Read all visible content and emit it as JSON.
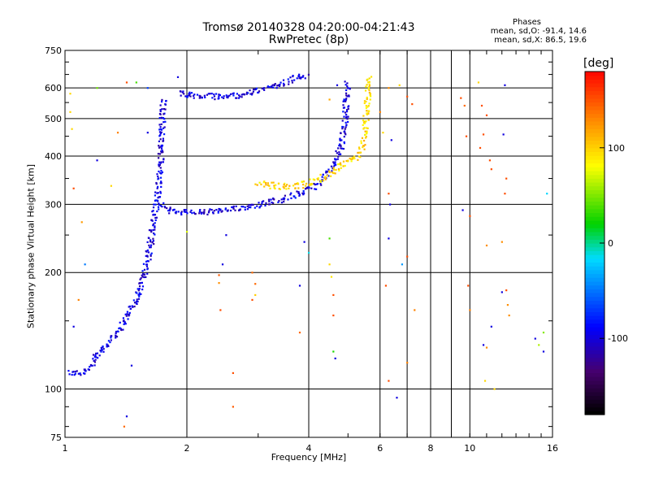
{
  "chart_data": {
    "type": "scatter",
    "title": "Tromsø 20140328 04:20:00-04:21:43",
    "subtitle": "RwPretec (8p)",
    "xlabel": "Frequency [MHz]",
    "ylabel": "Stationary phase Virtual Height [km]",
    "x_scale": "log",
    "y_scale": "log",
    "xlim": [
      1,
      16
    ],
    "ylim": [
      75,
      750
    ],
    "xticks": [
      1,
      2,
      4,
      6,
      8,
      10,
      16
    ],
    "xtick_labels": [
      "1",
      "2",
      "4",
      "6",
      "8",
      "10",
      "16"
    ],
    "x_gridlines": [
      2,
      4,
      6,
      7,
      8,
      9,
      10
    ],
    "yticks": [
      75,
      100,
      200,
      300,
      400,
      500,
      600,
      750
    ],
    "ytick_labels": [
      "75",
      "100",
      "200",
      "300",
      "400",
      "500",
      "600",
      "750"
    ],
    "y_gridlines": [
      100,
      200,
      300,
      400,
      500,
      600
    ],
    "colorbar": {
      "label": "[deg]",
      "range": [
        -180,
        180
      ],
      "ticks": [
        100,
        0,
        -100
      ],
      "tick_labels": [
        "100",
        "0",
        "-100"
      ]
    },
    "stats": {
      "heading": "Phases",
      "line_o": "mean, sd,O: -91.4, 14.6",
      "line_x": "mean, sd,X:  86.5, 19.6"
    },
    "series": [
      {
        "trace": "o-mode F-layer trace",
        "phase": -100,
        "segments": [
          [
            [
              1.02,
              110
            ],
            [
              1.1,
              110
            ],
            [
              1.15,
              114
            ],
            [
              1.2,
              122
            ],
            [
              1.3,
              134
            ],
            [
              1.4,
              150
            ],
            [
              1.5,
              170
            ],
            [
              1.55,
              190
            ],
            [
              1.6,
              215
            ],
            [
              1.63,
              240
            ],
            [
              1.65,
              270
            ],
            [
              1.68,
              300
            ],
            [
              1.7,
              330
            ],
            [
              1.72,
              370
            ],
            [
              1.73,
              420
            ],
            [
              1.74,
              480
            ],
            [
              1.75,
              560
            ]
          ],
          [
            [
              1.72,
              300
            ],
            [
              1.8,
              290
            ],
            [
              2.0,
              286
            ],
            [
              2.3,
              287
            ],
            [
              2.6,
              291
            ],
            [
              3.0,
              300
            ],
            [
              3.5,
              311
            ],
            [
              4.0,
              326
            ],
            [
              4.3,
              345
            ],
            [
              4.6,
              375
            ],
            [
              4.8,
              420
            ],
            [
              4.9,
              480
            ],
            [
              4.95,
              550
            ],
            [
              4.98,
              620
            ]
          ],
          [
            [
              1.9,
              585
            ],
            [
              2.1,
              572
            ],
            [
              2.4,
              570
            ],
            [
              2.7,
              575
            ],
            [
              3.0,
              590
            ],
            [
              3.4,
              615
            ],
            [
              3.8,
              640
            ],
            [
              3.95,
              650
            ]
          ]
        ]
      },
      {
        "trace": "x-mode F-layer trace",
        "phase": 95,
        "segments": [
          [
            [
              3.0,
              340
            ],
            [
              3.3,
              335
            ],
            [
              3.6,
              333
            ],
            [
              4.0,
              340
            ],
            [
              4.4,
              355
            ],
            [
              4.8,
              375
            ],
            [
              5.2,
              395
            ],
            [
              5.4,
              420
            ],
            [
              5.5,
              460
            ],
            [
              5.55,
              520
            ],
            [
              5.6,
              580
            ],
            [
              5.62,
              640
            ]
          ]
        ]
      },
      {
        "trace": "scattered noise points",
        "points": [
          [
            1.03,
            580,
            95
          ],
          [
            1.03,
            520,
            95
          ],
          [
            1.04,
            470,
            95
          ],
          [
            1.2,
            600,
            45
          ],
          [
            1.42,
            620,
            150
          ],
          [
            1.5,
            620,
            35
          ],
          [
            1.6,
            600,
            -70
          ],
          [
            1.4,
            80,
            140
          ],
          [
            1.42,
            85,
            -100
          ],
          [
            1.3,
            335,
            95
          ],
          [
            1.35,
            460,
            130
          ],
          [
            1.05,
            330,
            150
          ],
          [
            1.1,
            270,
            120
          ],
          [
            1.12,
            210,
            -50
          ],
          [
            1.08,
            170,
            130
          ],
          [
            1.05,
            145,
            -100
          ],
          [
            1.2,
            390,
            -100
          ],
          [
            1.46,
            115,
            -100
          ],
          [
            1.9,
            640,
            -100
          ],
          [
            1.6,
            460,
            -100
          ],
          [
            2.4,
            197,
            145
          ],
          [
            2.4,
            188,
            125
          ],
          [
            2.45,
            210,
            -100
          ],
          [
            2.42,
            160,
            150
          ],
          [
            2.5,
            250,
            -100
          ],
          [
            2.6,
            110,
            150
          ],
          [
            2.6,
            90,
            145
          ],
          [
            2.3,
            75,
            130
          ],
          [
            2.0,
            255,
            70
          ],
          [
            2.9,
            170,
            150
          ],
          [
            2.95,
            187,
            140
          ],
          [
            2.9,
            200,
            140
          ],
          [
            2.95,
            175,
            100
          ],
          [
            3.8,
            185,
            -100
          ],
          [
            3.8,
            140,
            140
          ],
          [
            3.9,
            240,
            -100
          ],
          [
            4.0,
            225,
            -15
          ],
          [
            4.5,
            210,
            95
          ],
          [
            4.55,
            195,
            90
          ],
          [
            4.6,
            175,
            150
          ],
          [
            4.5,
            245,
            35
          ],
          [
            4.6,
            155,
            150
          ],
          [
            4.6,
            125,
            25
          ],
          [
            4.65,
            120,
            -100
          ],
          [
            4.7,
            610,
            -100
          ],
          [
            4.5,
            560,
            115
          ],
          [
            6.0,
            520,
            130
          ],
          [
            6.1,
            460,
            95
          ],
          [
            6.4,
            440,
            -100
          ],
          [
            6.3,
            600,
            125
          ],
          [
            6.7,
            610,
            95
          ],
          [
            6.3,
            245,
            -100
          ],
          [
            6.3,
            320,
            150
          ],
          [
            6.35,
            300,
            -100
          ],
          [
            6.2,
            185,
            150
          ],
          [
            6.3,
            105,
            150
          ],
          [
            6.6,
            95,
            -100
          ],
          [
            6.8,
            210,
            -40
          ],
          [
            7.0,
            220,
            150
          ],
          [
            7.0,
            117,
            130
          ],
          [
            7.3,
            160,
            130
          ],
          [
            7.0,
            570,
            150
          ],
          [
            7.2,
            545,
            150
          ],
          [
            9.5,
            565,
            150
          ],
          [
            9.6,
            290,
            -100
          ],
          [
            9.7,
            540,
            140
          ],
          [
            9.8,
            450,
            150
          ],
          [
            10.0,
            280,
            150
          ],
          [
            9.9,
            185,
            150
          ],
          [
            10.0,
            160,
            130
          ],
          [
            10.5,
            620,
            95
          ],
          [
            10.7,
            540,
            150
          ],
          [
            10.6,
            420,
            150
          ],
          [
            10.8,
            455,
            150
          ],
          [
            11.0,
            510,
            150
          ],
          [
            11.2,
            390,
            150
          ],
          [
            11.0,
            235,
            125
          ],
          [
            11.3,
            370,
            150
          ],
          [
            10.8,
            130,
            -100
          ],
          [
            10.9,
            105,
            95
          ],
          [
            11.0,
            128,
            125
          ],
          [
            11.3,
            145,
            -100
          ],
          [
            11.5,
            100,
            95
          ],
          [
            12.2,
            610,
            -100
          ],
          [
            12.1,
            455,
            -100
          ],
          [
            12.3,
            350,
            150
          ],
          [
            12.2,
            320,
            150
          ],
          [
            12.0,
            240,
            125
          ],
          [
            12.3,
            180,
            150
          ],
          [
            12.4,
            165,
            125
          ],
          [
            12.5,
            155,
            125
          ],
          [
            12.0,
            178,
            -100
          ],
          [
            14.5,
            135,
            -100
          ],
          [
            14.8,
            130,
            60
          ],
          [
            15.2,
            140,
            50
          ],
          [
            15.2,
            125,
            -100
          ],
          [
            15.5,
            320,
            -20
          ]
        ]
      }
    ]
  }
}
